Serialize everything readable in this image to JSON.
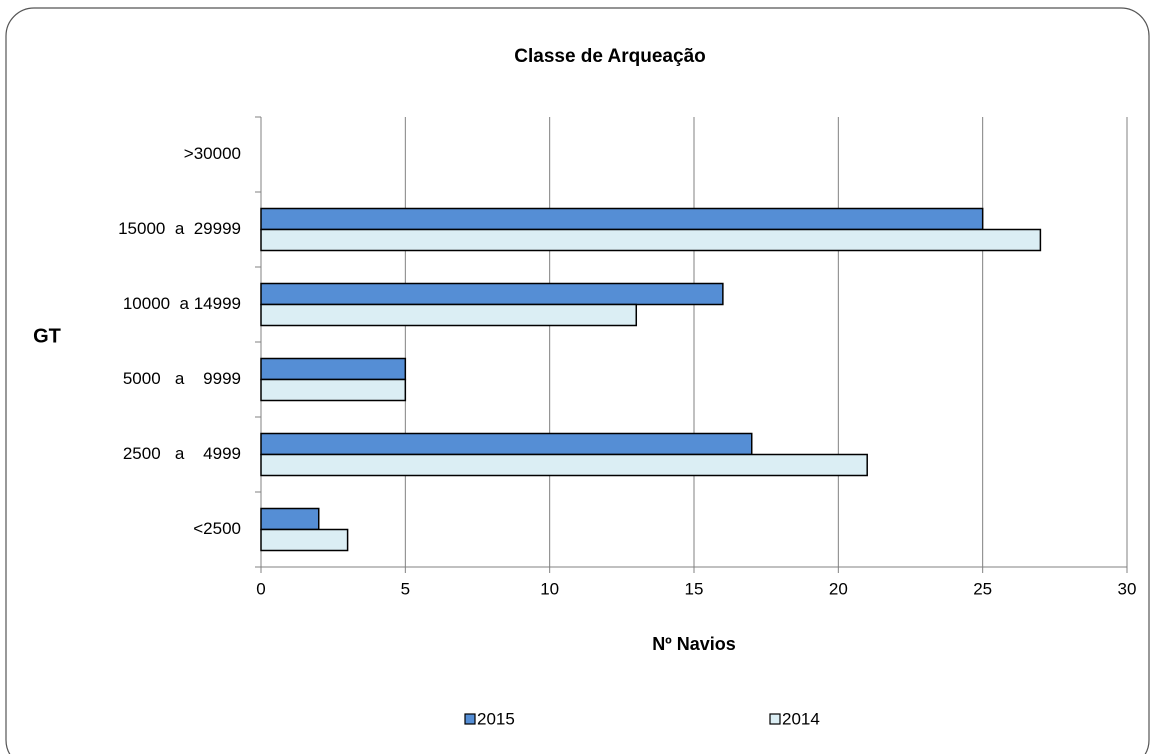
{
  "chart_data": {
    "type": "hbar",
    "title": "Classe de Arqueação",
    "x_label": "Nº Navios",
    "y_label": "GT",
    "categories": [
      "<2500",
      "2500   a    4999",
      "5000   a    9999",
      "10000  a 14999",
      "15000  a  29999",
      ">30000"
    ],
    "series": [
      {
        "name": "2015",
        "color": "#558ed5",
        "values": [
          2,
          17,
          5,
          16,
          25,
          0
        ]
      },
      {
        "name": "2014",
        "color": "#dbeef4",
        "values": [
          3,
          21,
          5,
          13,
          27,
          0
        ]
      }
    ],
    "xlim": [
      0,
      30
    ],
    "xticks": [
      0,
      5,
      10,
      15,
      20,
      25,
      30
    ],
    "grid": true,
    "legend": "bottom"
  }
}
